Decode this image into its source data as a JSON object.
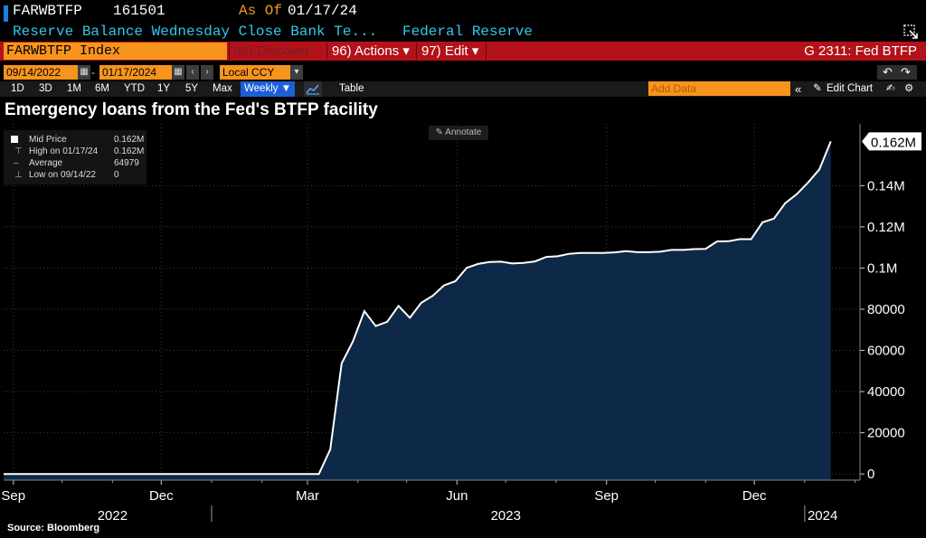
{
  "header": {
    "ticker": "FARWBTFP",
    "price": "161501",
    "asof_label": "As Of",
    "asof_date": "01/17/24",
    "description": "Reserve Balance Wednesday Close Bank Te...",
    "source_name": "Federal Reserve"
  },
  "band": {
    "index_label": "FARWBTFP Index",
    "discover": "96) Discover",
    "actions": "96) Actions ▾",
    "edit": "97) Edit ▾",
    "graph_title": "G 2311: Fed BTFP"
  },
  "dates": {
    "start": "09/14/2022",
    "dash": "-",
    "end": "01/17/2024",
    "currency": "Local CCY"
  },
  "toolbar": {
    "ranges": [
      "1D",
      "3D",
      "1M",
      "6M",
      "YTD",
      "1Y",
      "5Y",
      "Max"
    ],
    "frequency": "Weekly ▼",
    "table": "Table",
    "add_data_placeholder": "Add Data",
    "edit_chart": "Edit Chart",
    "annotate": "Annotate"
  },
  "legend": {
    "rows": [
      {
        "label": "Mid Price",
        "value": "0.162M"
      },
      {
        "label": "High on 01/17/24",
        "value": "0.162M"
      },
      {
        "label": "Average",
        "value": "64979"
      },
      {
        "label": "Low on 09/14/22",
        "value": "0"
      }
    ]
  },
  "icons": [
    "export-icon",
    "undo-icon",
    "redo-icon",
    "calendar-icon",
    "chevron-left-icon",
    "chevron-right-icon",
    "area-chart-icon",
    "pencil-icon",
    "collapse-icon"
  ],
  "colors": {
    "accent_orange": "#f7941d",
    "band_red": "#b3121a",
    "header_cyan": "#33c8ea",
    "area_fill": "#0e2847",
    "line": "#ffffff",
    "selected_blue": "#1d5fd6"
  },
  "chart_data": {
    "type": "area",
    "title": "Emergency loans from the Fed's BTFP facility",
    "source": "Source: Bloomberg",
    "last_value_label": "0.162M",
    "y_tick_labels": [
      "0",
      "20000",
      "40000",
      "60000",
      "80000",
      "0.1M",
      "0.12M",
      "0.14M"
    ],
    "y_ticks": [
      0,
      20000,
      40000,
      60000,
      80000,
      100000,
      120000,
      140000
    ],
    "ylim": [
      -3000,
      170000
    ],
    "x_month_labels": [
      {
        "label": "Sep",
        "date": "2022-09-01"
      },
      {
        "label": "Dec",
        "date": "2022-12-01"
      },
      {
        "label": "Mar",
        "date": "2023-03-01"
      },
      {
        "label": "Jun",
        "date": "2023-06-01"
      },
      {
        "label": "Sep",
        "date": "2023-09-01"
      },
      {
        "label": "Dec",
        "date": "2023-12-01"
      }
    ],
    "x_year_labels": [
      {
        "label": "2022",
        "date": "2022-11-01"
      },
      {
        "label": "2023",
        "date": "2023-07-01"
      },
      {
        "label": "2024",
        "date": "2024-01-12"
      }
    ],
    "xlim": [
      "2022-08-26",
      "2024-02-04"
    ],
    "grid": true,
    "series": [
      {
        "frequency": "weekly",
        "x": [
          "2022-09-14",
          "2023-03-08",
          "2023-03-15",
          "2023-03-22",
          "2023-03-29",
          "2023-04-05",
          "2023-04-12",
          "2023-04-19",
          "2023-04-26",
          "2023-05-03",
          "2023-05-10",
          "2023-05-17",
          "2023-05-24",
          "2023-05-31",
          "2023-06-07",
          "2023-06-14",
          "2023-06-21",
          "2023-06-28",
          "2023-07-05",
          "2023-07-12",
          "2023-07-19",
          "2023-07-26",
          "2023-08-02",
          "2023-08-09",
          "2023-08-16",
          "2023-08-23",
          "2023-08-30",
          "2023-09-06",
          "2023-09-13",
          "2023-09-20",
          "2023-09-27",
          "2023-10-04",
          "2023-10-11",
          "2023-10-18",
          "2023-10-25",
          "2023-11-01",
          "2023-11-08",
          "2023-11-15",
          "2023-11-22",
          "2023-11-29",
          "2023-12-06",
          "2023-12-13",
          "2023-12-20",
          "2023-12-27",
          "2024-01-03",
          "2024-01-10",
          "2024-01-17"
        ],
        "y": [
          0,
          0,
          11900,
          53700,
          64400,
          79000,
          71800,
          73900,
          81600,
          75800,
          83100,
          86500,
          91600,
          93600,
          100100,
          102000,
          102900,
          103100,
          102200,
          102500,
          103200,
          105400,
          105700,
          106900,
          107300,
          107300,
          107300,
          107600,
          108200,
          107700,
          107700,
          107900,
          108800,
          108800,
          109200,
          109300,
          112900,
          113000,
          114000,
          114000,
          122200,
          124000,
          131500,
          135800,
          141500,
          147900,
          161501
        ]
      }
    ]
  }
}
